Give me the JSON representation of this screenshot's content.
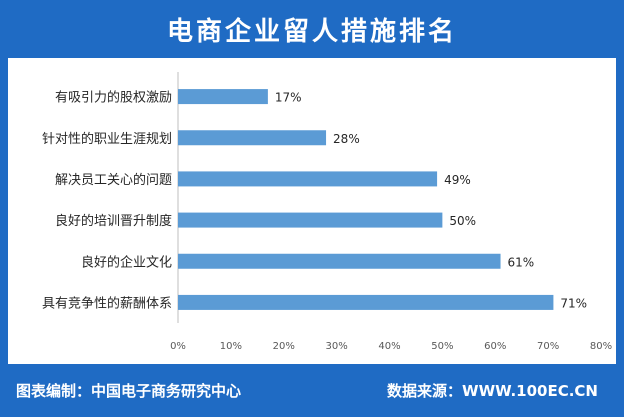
{
  "title": "电商企业留人措施排名",
  "footer": {
    "source_left": "图表编制：中国电子商务研究中心",
    "source_right": "数据来源：WWW.100EC.CN"
  },
  "colors": {
    "frame": "#1f6bc4",
    "bar": "#5b9bd5",
    "axis": "#bfbfbf"
  },
  "chart_data": {
    "type": "bar",
    "orientation": "horizontal",
    "title": "电商企业留人措施排名",
    "categories": [
      "有吸引力的股权激励",
      "针对性的职业生涯规划",
      "解决员工关心的问题",
      "良好的培训晋升制度",
      "良好的企业文化",
      "具有竞争性的薪酬体系"
    ],
    "values": [
      17,
      28,
      49,
      50,
      61,
      71
    ],
    "value_labels": [
      "17%",
      "28%",
      "49%",
      "50%",
      "61%",
      "71%"
    ],
    "xlim": [
      0,
      80
    ],
    "x_ticks": [
      0,
      10,
      20,
      30,
      40,
      50,
      60,
      70,
      80
    ],
    "x_tick_labels": [
      "0%",
      "10%",
      "20%",
      "30%",
      "40%",
      "50%",
      "60%",
      "70%",
      "80%"
    ],
    "grid": false,
    "legend": "none"
  }
}
